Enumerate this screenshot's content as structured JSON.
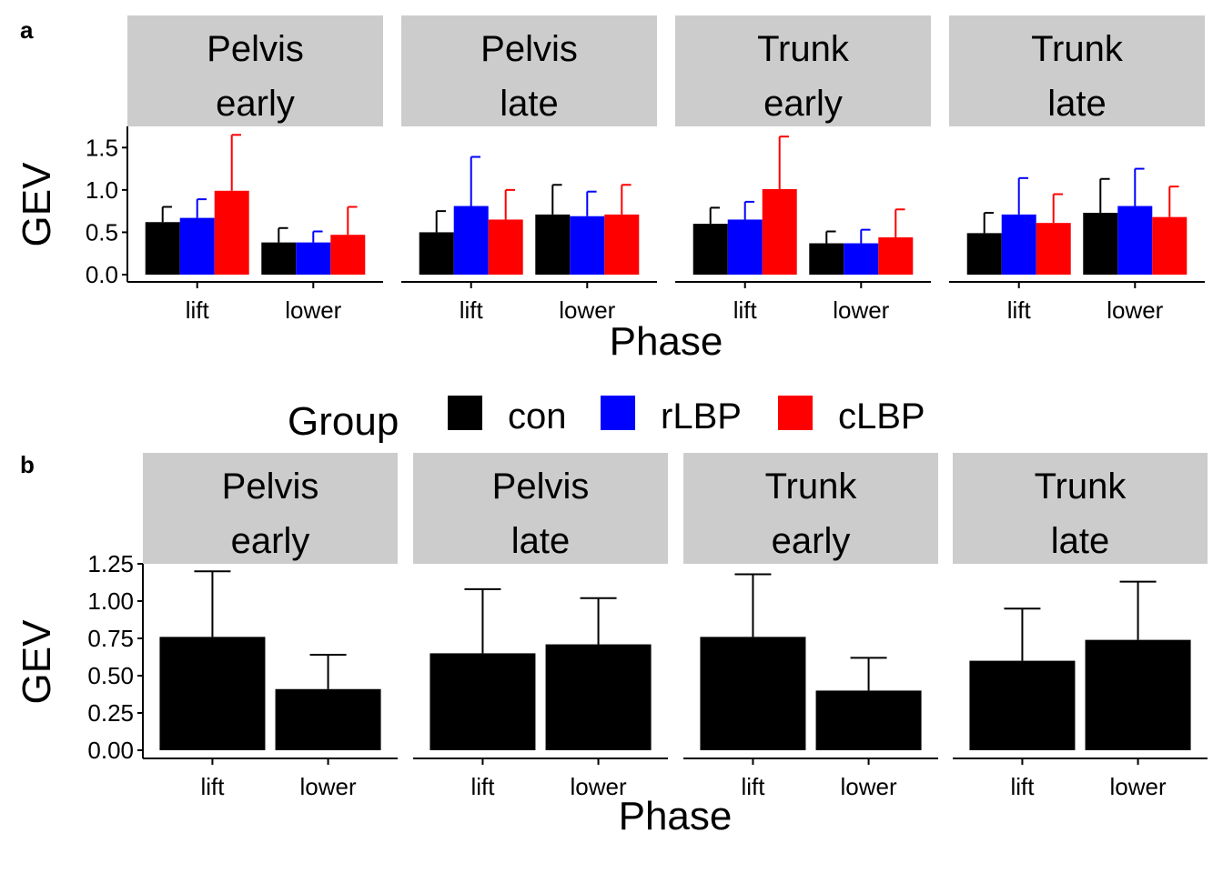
{
  "panel_labels": [
    "a",
    "b"
  ],
  "colors": {
    "con": "#000000",
    "rLBP": "#0000ff",
    "cLBP": "#ff0000",
    "strip": "#cccccc",
    "axis": "#000000"
  },
  "legend": {
    "title": "Group",
    "items": [
      {
        "label": "con",
        "color": "#000000"
      },
      {
        "label": "rLBP",
        "color": "#0000ff"
      },
      {
        "label": "cLBP",
        "color": "#ff0000"
      }
    ]
  },
  "chart_data": [
    {
      "type": "bar",
      "panel": "a",
      "xlabel": "Phase",
      "ylabel": "GEV",
      "ylim": [
        0,
        1.75
      ],
      "yticks": [
        "0.0",
        "0.5",
        "1.0",
        "1.5"
      ],
      "categories": [
        "lift",
        "lower"
      ],
      "groups": [
        "con",
        "rLBP",
        "cLBP"
      ],
      "facets": [
        {
          "line1": "Pelvis",
          "line2": "early",
          "values": {
            "con": [
              0.62,
              0.38
            ],
            "rLBP": [
              0.67,
              0.38
            ],
            "cLBP": [
              0.99,
              0.47
            ]
          },
          "errors": {
            "con": [
              0.8,
              0.55
            ],
            "rLBP": [
              0.89,
              0.51
            ],
            "cLBP": [
              1.65,
              0.8
            ]
          }
        },
        {
          "line1": "Pelvis",
          "line2": "late",
          "values": {
            "con": [
              0.5,
              0.71
            ],
            "rLBP": [
              0.81,
              0.69
            ],
            "cLBP": [
              0.65,
              0.71
            ]
          },
          "errors": {
            "con": [
              0.75,
              1.06
            ],
            "rLBP": [
              1.39,
              0.98
            ],
            "cLBP": [
              1.0,
              1.06
            ]
          }
        },
        {
          "line1": "Trunk",
          "line2": "early",
          "values": {
            "con": [
              0.6,
              0.37
            ],
            "rLBP": [
              0.65,
              0.37
            ],
            "cLBP": [
              1.01,
              0.44
            ]
          },
          "errors": {
            "con": [
              0.79,
              0.51
            ],
            "rLBP": [
              0.86,
              0.53
            ],
            "cLBP": [
              1.63,
              0.77
            ]
          }
        },
        {
          "line1": "Trunk",
          "line2": "late",
          "values": {
            "con": [
              0.49,
              0.73
            ],
            "rLBP": [
              0.71,
              0.81
            ],
            "cLBP": [
              0.61,
              0.68
            ]
          },
          "errors": {
            "con": [
              0.73,
              1.13
            ],
            "rLBP": [
              1.14,
              1.25
            ],
            "cLBP": [
              0.95,
              1.04
            ]
          }
        }
      ]
    },
    {
      "type": "bar",
      "panel": "b",
      "xlabel": "Phase",
      "ylabel": "GEV",
      "ylim": [
        0,
        1.25
      ],
      "yticks": [
        "0.00",
        "0.25",
        "0.50",
        "0.75",
        "1.00",
        "1.25"
      ],
      "categories": [
        "lift",
        "lower"
      ],
      "facets": [
        {
          "line1": "Pelvis",
          "line2": "early",
          "values": [
            0.76,
            0.41
          ],
          "errors": [
            1.2,
            0.64
          ]
        },
        {
          "line1": "Pelvis",
          "line2": "late",
          "values": [
            0.65,
            0.71
          ],
          "errors": [
            1.08,
            1.02
          ]
        },
        {
          "line1": "Trunk",
          "line2": "early",
          "values": [
            0.76,
            0.4
          ],
          "errors": [
            1.18,
            0.62
          ]
        },
        {
          "line1": "Trunk",
          "line2": "late",
          "values": [
            0.6,
            0.74
          ],
          "errors": [
            0.95,
            1.13
          ]
        }
      ]
    }
  ]
}
